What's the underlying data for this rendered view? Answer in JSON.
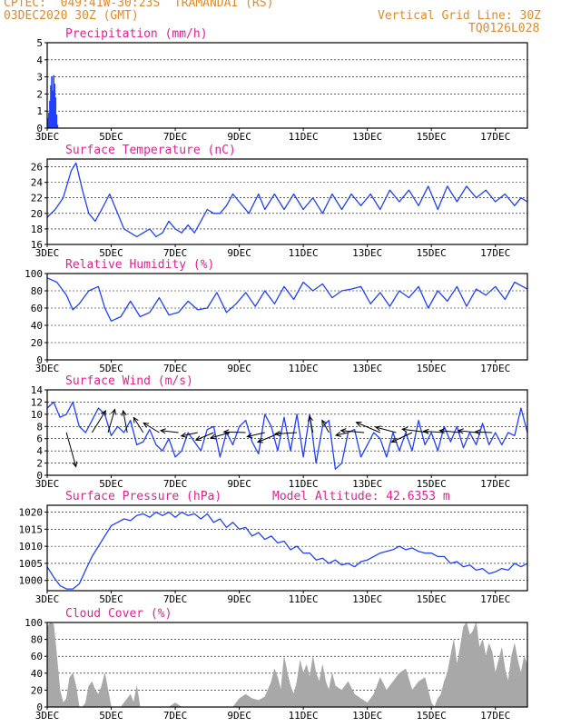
{
  "header": {
    "line1_left": "CPTEC:  049:41W-30:23S  TRAMANDAI (RS)",
    "line2_left": "03DEC2020 30Z (GMT)",
    "line2_right": "Vertical Grid Line: 30Z",
    "line3_right": "TQ0126L028"
  },
  "colors": {
    "header": "#e08a2a",
    "title": "#e0238c",
    "series": "#2040ff",
    "cloud": "#a8a8a8",
    "frame": "#000000"
  },
  "x_ticks": [
    "3DEC",
    "5DEC",
    "7DEC",
    "9DEC",
    "11DEC",
    "13DEC",
    "15DEC",
    "17DEC"
  ],
  "chart_data": [
    {
      "id": "precip",
      "type": "bar",
      "title": "Precipitation (mm/h)",
      "ylim": [
        0,
        5
      ],
      "yticks": [
        "0",
        "1",
        "2",
        "3",
        "4",
        "5"
      ],
      "x_days": [
        3.0,
        3.03,
        3.06,
        3.09,
        3.12,
        3.15,
        3.18,
        3.21,
        3.24,
        3.27,
        3.3
      ],
      "values": [
        0.6,
        0.9,
        1.6,
        2.5,
        3.0,
        2.2,
        3.1,
        2.6,
        1.8,
        0.8,
        0.2
      ]
    },
    {
      "id": "temp",
      "type": "line",
      "title": "Surface Temperature (nC)",
      "ylim": [
        16,
        27
      ],
      "yticks": [
        "16",
        "18",
        "20",
        "22",
        "24",
        "26"
      ],
      "x_days": [
        3.0,
        3.25,
        3.5,
        3.75,
        3.9,
        4.1,
        4.3,
        4.5,
        4.7,
        4.95,
        5.2,
        5.4,
        5.6,
        5.8,
        6.0,
        6.2,
        6.4,
        6.6,
        6.8,
        7.0,
        7.2,
        7.4,
        7.6,
        7.8,
        8.0,
        8.2,
        8.4,
        8.6,
        8.8,
        9.0,
        9.3,
        9.6,
        9.8,
        10.1,
        10.4,
        10.7,
        11.0,
        11.3,
        11.6,
        11.9,
        12.2,
        12.5,
        12.8,
        13.1,
        13.4,
        13.7,
        14.0,
        14.3,
        14.6,
        14.9,
        15.2,
        15.5,
        15.8,
        16.1,
        16.4,
        16.7,
        17.0,
        17.3,
        17.6,
        17.8,
        18.0
      ],
      "values": [
        19.5,
        20.5,
        22.0,
        25.5,
        26.5,
        23.0,
        20.0,
        19.0,
        20.5,
        22.5,
        20.0,
        18.0,
        17.5,
        17.0,
        17.5,
        18.0,
        17.0,
        17.5,
        19.0,
        18.0,
        17.5,
        18.5,
        17.5,
        19.0,
        20.5,
        20.0,
        20.0,
        21.0,
        22.5,
        21.5,
        20.0,
        22.5,
        20.5,
        22.5,
        20.5,
        22.5,
        20.5,
        22.0,
        20.0,
        22.5,
        20.5,
        22.5,
        21.0,
        22.5,
        20.5,
        23.0,
        21.5,
        23.0,
        21.0,
        23.5,
        20.5,
        23.5,
        21.5,
        23.5,
        22.0,
        23.0,
        21.5,
        22.5,
        21.0,
        22.0,
        21.5
      ]
    },
    {
      "id": "rh",
      "type": "line",
      "title": "Relative Humidity (%)",
      "ylim": [
        0,
        100
      ],
      "yticks": [
        "0",
        "20",
        "40",
        "60",
        "80",
        "100"
      ],
      "x_days": [
        3.0,
        3.3,
        3.6,
        3.8,
        4.0,
        4.3,
        4.6,
        4.8,
        5.0,
        5.3,
        5.6,
        5.9,
        6.2,
        6.5,
        6.8,
        7.1,
        7.4,
        7.7,
        8.0,
        8.3,
        8.6,
        8.9,
        9.2,
        9.5,
        9.8,
        10.1,
        10.4,
        10.7,
        11.0,
        11.3,
        11.6,
        11.9,
        12.2,
        12.5,
        12.8,
        13.1,
        13.4,
        13.7,
        14.0,
        14.3,
        14.6,
        14.9,
        15.2,
        15.5,
        15.8,
        16.1,
        16.4,
        16.7,
        17.0,
        17.3,
        17.6,
        18.0
      ],
      "values": [
        95,
        90,
        75,
        58,
        65,
        80,
        85,
        60,
        45,
        50,
        68,
        50,
        55,
        72,
        52,
        55,
        68,
        58,
        60,
        78,
        55,
        65,
        78,
        62,
        80,
        65,
        85,
        70,
        90,
        80,
        88,
        72,
        80,
        82,
        85,
        65,
        78,
        62,
        80,
        72,
        85,
        60,
        80,
        68,
        85,
        62,
        82,
        75,
        85,
        70,
        90,
        82
      ]
    },
    {
      "id": "wind",
      "type": "line",
      "title": "Surface Wind (m/s)",
      "ylim": [
        0,
        14
      ],
      "yticks": [
        "0",
        "2",
        "4",
        "6",
        "8",
        "10",
        "12",
        "14"
      ],
      "x_days": [
        3.0,
        3.2,
        3.4,
        3.6,
        3.8,
        4.0,
        4.2,
        4.4,
        4.6,
        4.8,
        5.0,
        5.2,
        5.4,
        5.6,
        5.8,
        6.0,
        6.2,
        6.4,
        6.6,
        6.8,
        7.0,
        7.2,
        7.4,
        7.6,
        7.8,
        8.0,
        8.2,
        8.4,
        8.6,
        8.8,
        9.0,
        9.2,
        9.4,
        9.6,
        9.8,
        10.0,
        10.2,
        10.4,
        10.6,
        10.8,
        11.0,
        11.2,
        11.4,
        11.6,
        11.8,
        12.0,
        12.2,
        12.4,
        12.6,
        12.8,
        13.0,
        13.2,
        13.4,
        13.6,
        13.8,
        14.0,
        14.2,
        14.4,
        14.6,
        14.8,
        15.0,
        15.2,
        15.4,
        15.6,
        15.8,
        16.0,
        16.2,
        16.4,
        16.6,
        16.8,
        17.0,
        17.2,
        17.4,
        17.6,
        17.8,
        18.0
      ],
      "values": [
        11,
        12,
        9.5,
        10,
        12,
        8,
        7,
        9,
        11,
        10,
        6.5,
        8,
        7,
        9,
        5,
        5.5,
        7.5,
        5,
        4,
        6,
        3,
        4,
        7,
        5.5,
        4,
        7.5,
        8,
        3,
        7,
        5,
        8,
        9,
        5.5,
        3.5,
        10,
        8,
        4,
        9.5,
        4,
        10,
        3,
        10,
        2,
        8,
        9,
        1,
        2,
        7,
        7.5,
        3,
        5,
        7,
        6,
        3,
        7,
        4,
        7,
        4,
        9,
        5,
        7,
        4,
        8,
        5.5,
        8,
        4.5,
        7,
        5,
        8.5,
        5,
        7,
        5,
        7,
        6.5,
        11,
        7
      ]
    },
    {
      "id": "wind_vectors",
      "type": "scatter",
      "title": "",
      "marks": "arrows",
      "x_days": [
        3.6,
        4.4,
        4.9,
        5.5,
        6.0,
        6.5,
        7.1,
        7.7,
        8.2,
        8.7,
        9.2,
        9.8,
        10.3,
        10.8,
        11.3,
        11.8,
        12.4,
        12.9,
        13.4,
        13.9,
        14.4,
        14.9,
        15.4,
        15.9,
        16.4,
        16.9
      ],
      "u": [
        1.4,
        2.0,
        1.0,
        -0.6,
        -1.4,
        -2.3,
        -2.6,
        -2.4,
        -2.6,
        -2.8,
        -3.2,
        -2.6,
        -3.4,
        -3.2,
        -0.5,
        -1.0,
        -1.8,
        -3.4,
        -3.5,
        -3.0,
        -3.0,
        -3.8,
        -3.0,
        -3.0,
        -2.6,
        -2.5
      ],
      "v": [
        -5.0,
        3.2,
        3.4,
        3.2,
        2.2,
        1.4,
        0.3,
        -0.5,
        -1.1,
        -0.8,
        0.1,
        -0.6,
        -1.4,
        -0.2,
        2.4,
        1.8,
        -0.4,
        0.3,
        1.5,
        0.8,
        -1.4,
        0.5,
        0.2,
        0.3,
        0.3,
        0.1
      ]
    },
    {
      "id": "pressure",
      "type": "line",
      "title": "Surface Pressure (hPa)",
      "annotation": "Model Altitude: 42.6353 m",
      "ylim": [
        997,
        1022
      ],
      "yticks": [
        "1000",
        "1005",
        "1010",
        "1015",
        "1020"
      ],
      "x_days": [
        3.0,
        3.2,
        3.4,
        3.6,
        3.8,
        4.0,
        4.2,
        4.4,
        4.6,
        4.8,
        5.0,
        5.2,
        5.4,
        5.6,
        5.8,
        6.0,
        6.2,
        6.4,
        6.6,
        6.8,
        7.0,
        7.2,
        7.4,
        7.6,
        7.8,
        8.0,
        8.2,
        8.4,
        8.6,
        8.8,
        9.0,
        9.2,
        9.4,
        9.6,
        9.8,
        10.0,
        10.2,
        10.4,
        10.6,
        10.8,
        11.0,
        11.2,
        11.4,
        11.6,
        11.8,
        12.0,
        12.2,
        12.4,
        12.6,
        12.8,
        13.0,
        13.2,
        13.4,
        13.6,
        13.8,
        14.0,
        14.2,
        14.4,
        14.6,
        14.8,
        15.0,
        15.2,
        15.4,
        15.6,
        15.8,
        16.0,
        16.2,
        16.4,
        16.6,
        16.8,
        17.0,
        17.2,
        17.4,
        17.6,
        17.8,
        18.0
      ],
      "values": [
        1004,
        1001,
        998.5,
        997.5,
        997.5,
        999,
        1003,
        1007,
        1010,
        1013,
        1016,
        1017,
        1018,
        1017.5,
        1019,
        1019.5,
        1018.5,
        1020,
        1019,
        1020,
        1018.5,
        1020,
        1019,
        1019.5,
        1018,
        1019.5,
        1017,
        1018,
        1015.5,
        1017,
        1015,
        1015.5,
        1013,
        1014,
        1012,
        1013,
        1011,
        1011.5,
        1009,
        1010,
        1008,
        1008,
        1006,
        1006.5,
        1005,
        1006,
        1004.5,
        1005,
        1004,
        1005.5,
        1006,
        1007,
        1008,
        1008.5,
        1009,
        1010,
        1009,
        1009.5,
        1008.5,
        1008,
        1008,
        1007,
        1007,
        1005,
        1005.5,
        1004,
        1004.5,
        1003,
        1003.5,
        1002,
        1002.5,
        1003.5,
        1003,
        1005,
        1004,
        1005
      ]
    },
    {
      "id": "cloud",
      "type": "area",
      "title": "Cloud Cover (%)",
      "ylim": [
        0,
        100
      ],
      "yticks": [
        "0",
        "20",
        "40",
        "60",
        "80",
        "100"
      ],
      "x_days": [
        3.0,
        3.1,
        3.2,
        3.3,
        3.4,
        3.5,
        3.6,
        3.7,
        3.8,
        3.9,
        4.0,
        4.1,
        4.2,
        4.3,
        4.4,
        4.5,
        4.6,
        4.7,
        4.8,
        4.9,
        5.0,
        5.1,
        5.2,
        5.3,
        5.4,
        5.5,
        5.6,
        5.7,
        5.8,
        5.9,
        6.0,
        6.2,
        6.4,
        6.6,
        6.8,
        7.0,
        7.2,
        7.4,
        7.6,
        7.8,
        8.0,
        8.2,
        8.4,
        8.6,
        8.8,
        9.0,
        9.2,
        9.4,
        9.6,
        9.8,
        10.0,
        10.1,
        10.2,
        10.3,
        10.4,
        10.5,
        10.6,
        10.7,
        10.8,
        10.9,
        11.0,
        11.1,
        11.2,
        11.3,
        11.4,
        11.5,
        11.6,
        11.7,
        11.8,
        11.9,
        12.0,
        12.2,
        12.4,
        12.6,
        12.8,
        13.0,
        13.2,
        13.4,
        13.6,
        13.8,
        14.0,
        14.2,
        14.4,
        14.6,
        14.8,
        15.0,
        15.1,
        15.2,
        15.3,
        15.4,
        15.5,
        15.6,
        15.7,
        15.8,
        15.9,
        16.0,
        16.1,
        16.2,
        16.3,
        16.4,
        16.5,
        16.6,
        16.7,
        16.8,
        16.9,
        17.0,
        17.1,
        17.2,
        17.3,
        17.4,
        17.5,
        17.6,
        17.7,
        17.8,
        17.9,
        18.0
      ],
      "values": [
        95,
        100,
        98,
        60,
        20,
        5,
        10,
        35,
        40,
        25,
        0,
        0,
        5,
        25,
        30,
        20,
        15,
        25,
        40,
        20,
        0,
        0,
        0,
        0,
        5,
        10,
        15,
        5,
        25,
        0,
        0,
        0,
        0,
        0,
        0,
        5,
        0,
        0,
        0,
        0,
        0,
        0,
        0,
        0,
        0,
        10,
        15,
        10,
        8,
        12,
        30,
        45,
        35,
        20,
        60,
        40,
        25,
        15,
        30,
        55,
        40,
        50,
        35,
        60,
        40,
        30,
        50,
        30,
        20,
        40,
        25,
        20,
        30,
        15,
        10,
        5,
        15,
        35,
        20,
        30,
        40,
        45,
        20,
        30,
        35,
        5,
        0,
        10,
        15,
        30,
        40,
        60,
        80,
        50,
        70,
        95,
        100,
        85,
        90,
        100,
        70,
        80,
        60,
        75,
        65,
        40,
        55,
        70,
        45,
        30,
        60,
        75,
        55,
        40,
        60,
        50
      ]
    }
  ]
}
